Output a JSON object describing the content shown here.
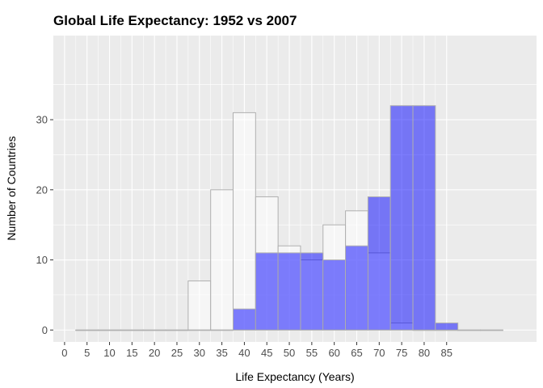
{
  "chart_data": {
    "type": "bar",
    "title": "Global Life Expectancy: 1952 vs 2007",
    "xlabel": "Life Expectancy (Years)",
    "ylabel": "Number of Countries",
    "bin_width": 5,
    "bin_starts": [
      5,
      10,
      15,
      20,
      25,
      30,
      35,
      40,
      45,
      50,
      55,
      60,
      65,
      70,
      75,
      80,
      85,
      90,
      95
    ],
    "x_ticks": [
      "0",
      "5",
      "10",
      "15",
      "20",
      "25",
      "30",
      "35",
      "40",
      "45",
      "50",
      "55",
      "60",
      "65",
      "70",
      "75",
      "80",
      "85"
    ],
    "y_ticks": [
      0,
      10,
      20,
      30
    ],
    "xlim": [
      -2.5,
      105
    ],
    "ylim": [
      -1.7,
      42
    ],
    "series": [
      {
        "values": [
          0,
          0,
          0,
          0,
          0,
          7,
          20,
          31,
          19,
          12,
          10,
          15,
          17,
          11,
          1,
          0,
          0,
          0,
          0
        ],
        "color": "#ffffff",
        "opacity": 0.55
      },
      {
        "values": [
          0,
          0,
          0,
          0,
          0,
          0,
          0,
          3,
          11,
          11,
          11,
          10,
          12,
          19,
          32,
          32,
          1,
          0,
          0
        ],
        "color": "#0000ff",
        "opacity": 0.5
      }
    ],
    "colors": {
      "panel_bg": "#ebebeb",
      "grid_major": "#ffffff",
      "bar_outline": "#b0b0b0"
    },
    "grid": true,
    "legend": "none"
  }
}
